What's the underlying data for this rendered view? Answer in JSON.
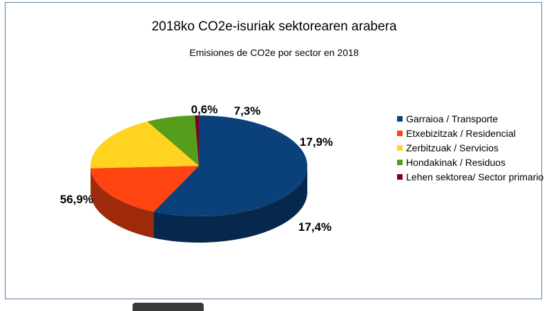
{
  "chart_data": {
    "type": "pie",
    "title": "2018ko CO2e-isuriak sektorearen arabera",
    "subtitle": "Emisiones de CO2e por sector en 2018",
    "legend_position": "right",
    "slices": [
      {
        "name": "Garraioa / Transporte",
        "value": 56.9,
        "label": "56,9%",
        "color": "#0a417a"
      },
      {
        "name": "Etxebizitzak / Residencial",
        "value": 17.4,
        "label": "17,4%",
        "color": "#ff4311"
      },
      {
        "name": "Zerbitzuak / Servicios",
        "value": 17.9,
        "label": "17,9%",
        "color": "#ffd320"
      },
      {
        "name": "Hondakinak / Residuos",
        "value": 7.3,
        "label": "7,3%",
        "color": "#579d1c"
      },
      {
        "name": "Lehen sektorea/ Sector primario",
        "value": 0.6,
        "label": "0,6%",
        "color": "#7e0021"
      }
    ]
  }
}
